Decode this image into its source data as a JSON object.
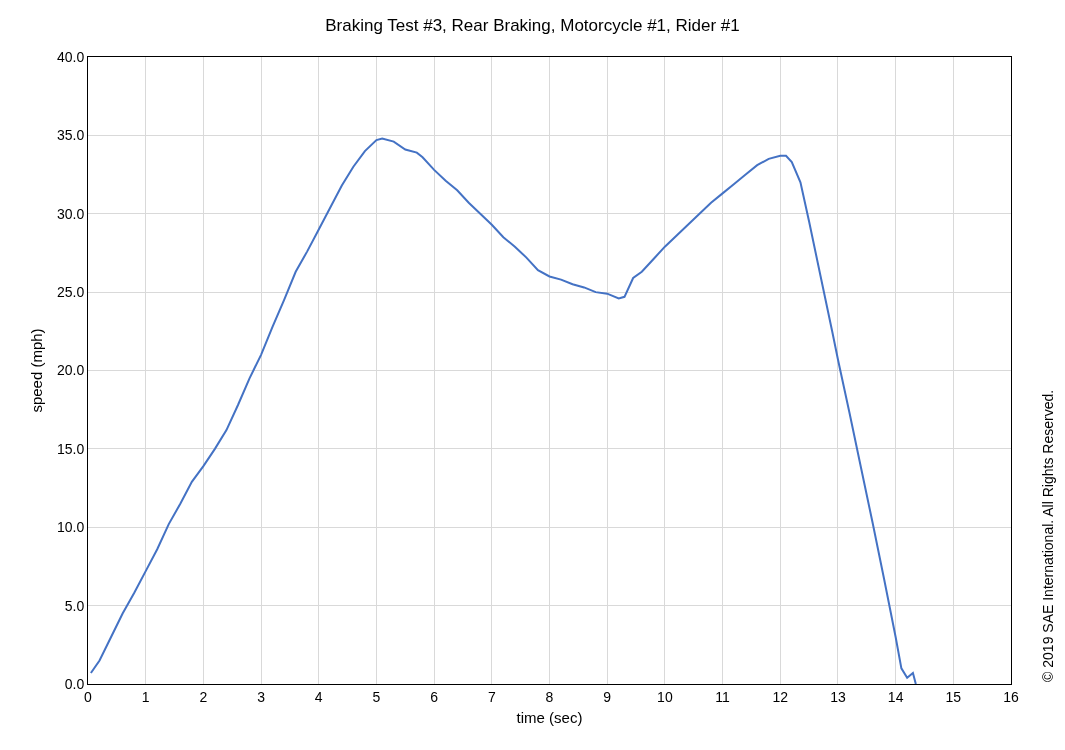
{
  "chart_data": {
    "type": "line",
    "title": "Braking Test #3, Rear Braking, Motorcycle #1, Rider #1",
    "xlabel": "time (sec)",
    "ylabel": "speed (mph)",
    "annotations": [
      "© 2019 SAE International. All Rights Reserved."
    ],
    "series": [
      {
        "color": "#4472c4",
        "x": [
          0.05,
          0.2,
          0.4,
          0.6,
          0.8,
          1.0,
          1.2,
          1.4,
          1.6,
          1.8,
          2.0,
          2.2,
          2.4,
          2.6,
          2.8,
          3.0,
          3.2,
          3.4,
          3.6,
          3.8,
          4.0,
          4.2,
          4.4,
          4.6,
          4.8,
          5.0,
          5.1,
          5.3,
          5.5,
          5.7,
          5.8,
          6.0,
          6.2,
          6.4,
          6.6,
          6.8,
          7.0,
          7.2,
          7.4,
          7.6,
          7.8,
          8.0,
          8.2,
          8.4,
          8.6,
          8.8,
          9.0,
          9.2,
          9.3,
          9.45,
          9.6,
          9.8,
          10.0,
          10.2,
          10.4,
          10.6,
          10.8,
          11.0,
          11.2,
          11.4,
          11.6,
          11.8,
          12.0,
          12.1,
          12.2,
          12.35,
          12.5,
          12.7,
          12.9,
          13.0,
          13.2,
          13.4,
          13.6,
          13.8,
          14.0,
          14.1,
          14.2,
          14.3,
          14.35
        ],
        "values": [
          0.7,
          1.5,
          3.0,
          4.5,
          5.8,
          7.2,
          8.6,
          10.2,
          11.5,
          12.9,
          13.9,
          15.0,
          16.2,
          17.8,
          19.5,
          21.0,
          22.8,
          24.5,
          26.3,
          27.6,
          29.0,
          30.4,
          31.8,
          33.0,
          34.0,
          34.7,
          34.8,
          34.6,
          34.1,
          33.9,
          33.6,
          32.8,
          32.1,
          31.5,
          30.7,
          30.0,
          29.3,
          28.5,
          27.9,
          27.2,
          26.4,
          26.0,
          25.8,
          25.5,
          25.3,
          25.0,
          24.9,
          24.6,
          24.7,
          25.9,
          26.3,
          27.1,
          27.9,
          28.6,
          29.3,
          30.0,
          30.7,
          31.3,
          31.9,
          32.5,
          33.1,
          33.5,
          33.7,
          33.7,
          33.3,
          32.0,
          29.5,
          26.0,
          22.5,
          20.7,
          17.3,
          13.8,
          10.3,
          6.7,
          3.0,
          1.0,
          0.4,
          0.7,
          0.0
        ]
      }
    ],
    "xlim": [
      0,
      16
    ],
    "xticks": [
      0,
      1,
      2,
      3,
      4,
      5,
      6,
      7,
      8,
      9,
      10,
      11,
      12,
      13,
      14,
      15,
      16
    ],
    "ylim": [
      0,
      40
    ],
    "yticks": [
      {
        "value": 0,
        "label": "0.0"
      },
      {
        "value": 5,
        "label": "5.0"
      },
      {
        "value": 10,
        "label": "10.0"
      },
      {
        "value": 15,
        "label": "15.0"
      },
      {
        "value": 20,
        "label": "20.0"
      },
      {
        "value": 25,
        "label": "25.0"
      },
      {
        "value": 30,
        "label": "30.0"
      },
      {
        "value": 35,
        "label": "35.0"
      },
      {
        "value": 40,
        "label": "40.0"
      }
    ],
    "grid": true,
    "marker": "none",
    "line_style": "solid"
  }
}
